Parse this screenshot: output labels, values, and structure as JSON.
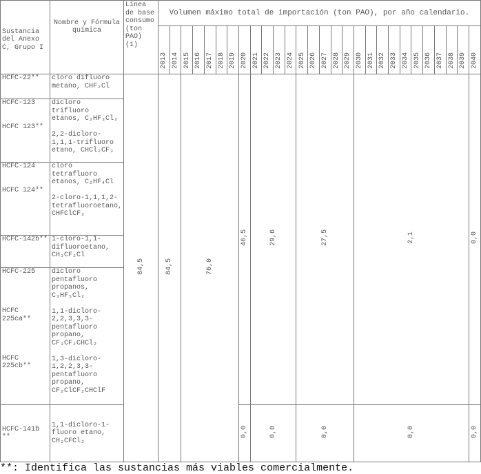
{
  "header": {
    "col_substance": "Sustancia del Anexo C, Grupo I",
    "col_name": "Nombre y Fórmula química",
    "col_baseline": "Línea de base consumo (ton PAO) (1)",
    "col_volume": "Volumen máximo total de importación (ton PAO), por año calendario.",
    "years": [
      "2013",
      "2014",
      "2015",
      "2016",
      "2017",
      "2018",
      "2019",
      "2020",
      "2021",
      "2022",
      "2023",
      "2024",
      "2025",
      "2026",
      "2027",
      "2028",
      "2029",
      "2030",
      "2031",
      "2032",
      "2033",
      "2034",
      "2035",
      "2036",
      "2037",
      "2038",
      "2039",
      "2040"
    ]
  },
  "rows": [
    {
      "substance": [
        "HCFC-22**"
      ],
      "name": [
        "cloro difluoro metano, CHF₂Cl"
      ]
    },
    {
      "substance": [
        "HCFC-123",
        "HCFC 123**"
      ],
      "name": [
        "dicloro trifluoro etanos, C₂HF₃Cl₂",
        "2,2-dicloro-1,1,1-trifluoro etano, CHCl₂CF₃"
      ]
    },
    {
      "substance": [
        "HCFC-124",
        "HCFC 124**"
      ],
      "name": [
        "cloro tetrafluoro etanos, C₂HF₄Cl",
        "2-cloro-1,1,1,2-tetrafluoroetano, CHFClCF₃"
      ]
    },
    {
      "substance": [
        "HCFC-142b**"
      ],
      "name": [
        "1-cloro-1,1-difluoroetano, CH₃CF₂Cl"
      ]
    },
    {
      "substance": [
        "HCFC-225",
        "HCFC 225ca**",
        "HCFC 225cb**"
      ],
      "name": [
        "dicloro pentafluoro propanos, C₃HF₅Cl₂",
        "1,1-dicloro-2,2,3,3,3-pentafluoro propano, CF₃CF₂CHCl₂",
        "1,3-dicloro-1,2,2,3,3-pentafluoro propano, CF₂ClCF₂CHClF"
      ]
    },
    {
      "substance": [
        "HCFC-141b **"
      ],
      "name": [
        "1,1-dicloro-1-fluoro etano, CH₃CFCl₂"
      ]
    }
  ],
  "values": {
    "baseline": "84,5",
    "y2013_2014": "84,5",
    "y2015_2019": "76,0",
    "y2020": "46,5",
    "y2021_2024": "29,6",
    "y2025_2029": "27,5",
    "y2030_2039": "2,1",
    "y2040": "0,0"
  },
  "values_141b": {
    "y2020": "0,0",
    "y2021_2024": "0,0",
    "y2025_2029": "0,0",
    "y2030_2039": "0,0",
    "y2040": "0,0"
  },
  "footnote": "**: Identifica las sustancias más viables comercialmente."
}
